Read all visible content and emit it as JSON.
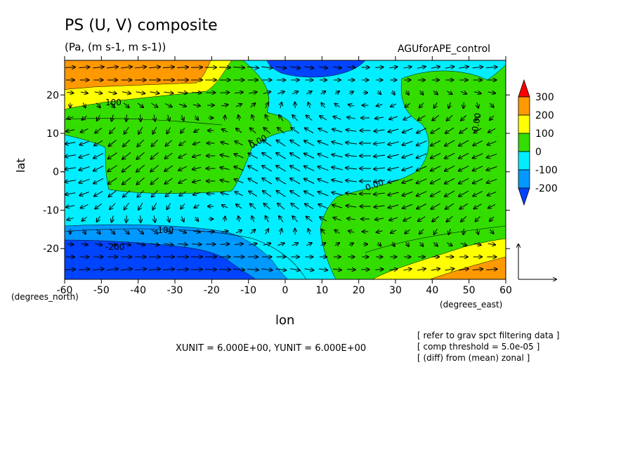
{
  "chart_data": {
    "type": "heatmap",
    "title": "PS (U, V) composite",
    "subtitle": "(Pa, (m s-1, m s-1))",
    "run_name": "AGUforAPE_control",
    "xlabel": "lon",
    "ylabel": "lat",
    "x_unit_label": "(degrees_east)",
    "y_unit_label": "(degrees_north)",
    "xlim": [
      -60,
      60
    ],
    "ylim": [
      -28,
      29
    ],
    "x_ticks": [
      "-60",
      "-50",
      "-40",
      "-30",
      "-20",
      "-10",
      "0",
      "10",
      "20",
      "30",
      "40",
      "50",
      "60"
    ],
    "y_ticks": [
      "20",
      "10",
      "0",
      "-10",
      "-20"
    ],
    "colorbar": {
      "levels": [
        "300",
        "200",
        "100",
        "0",
        "-100",
        "-200"
      ],
      "colors": [
        "#ff0000",
        "#ff9900",
        "#ffff00",
        "#33dd00",
        "#00eeff",
        "#0099ff",
        "#0044ff"
      ]
    },
    "contour_labels": [
      "100",
      "0.00",
      "0.00",
      "-100",
      "-200",
      "0.00"
    ],
    "vector_units": "XUNIT = 6.000E+00, YUNIT = 6.000E+00",
    "notes": [
      "[ refer to grav spct filtering data ]",
      "[ comp threshold = 5.0e-05 ]",
      "[ (diff) from (mean) zonal ]"
    ]
  }
}
